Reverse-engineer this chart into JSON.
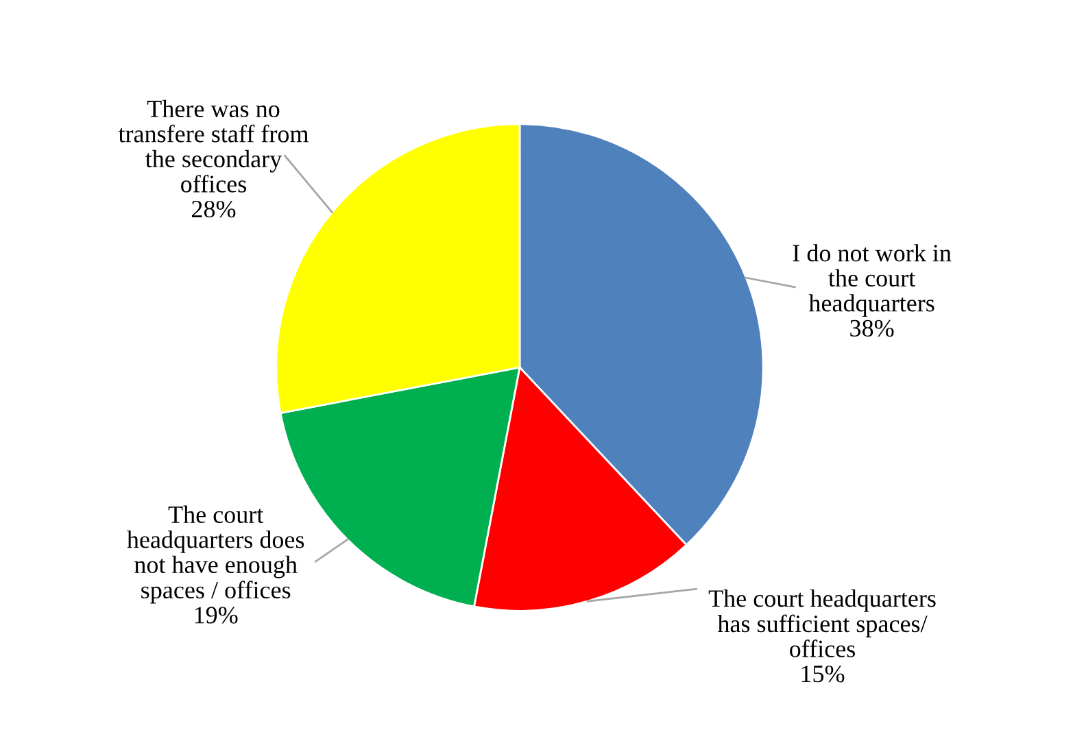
{
  "chart_data": {
    "type": "pie",
    "categories": [
      "I do not work in\nthe court\nheadquarters",
      "The court headquarters\nhas sufficient spaces/\noffices",
      "The court\nheadquarters does\nnot have enough\nspaces / offices",
      "There was no\ntransfere staff from\nthe secondary\noffices"
    ],
    "values": [
      38,
      15,
      19,
      28
    ],
    "value_labels": [
      "38%",
      "15%",
      "19%",
      "28%"
    ],
    "colors": [
      "#4f81bd",
      "#ff0000",
      "#00b050",
      "#ffff00"
    ]
  }
}
